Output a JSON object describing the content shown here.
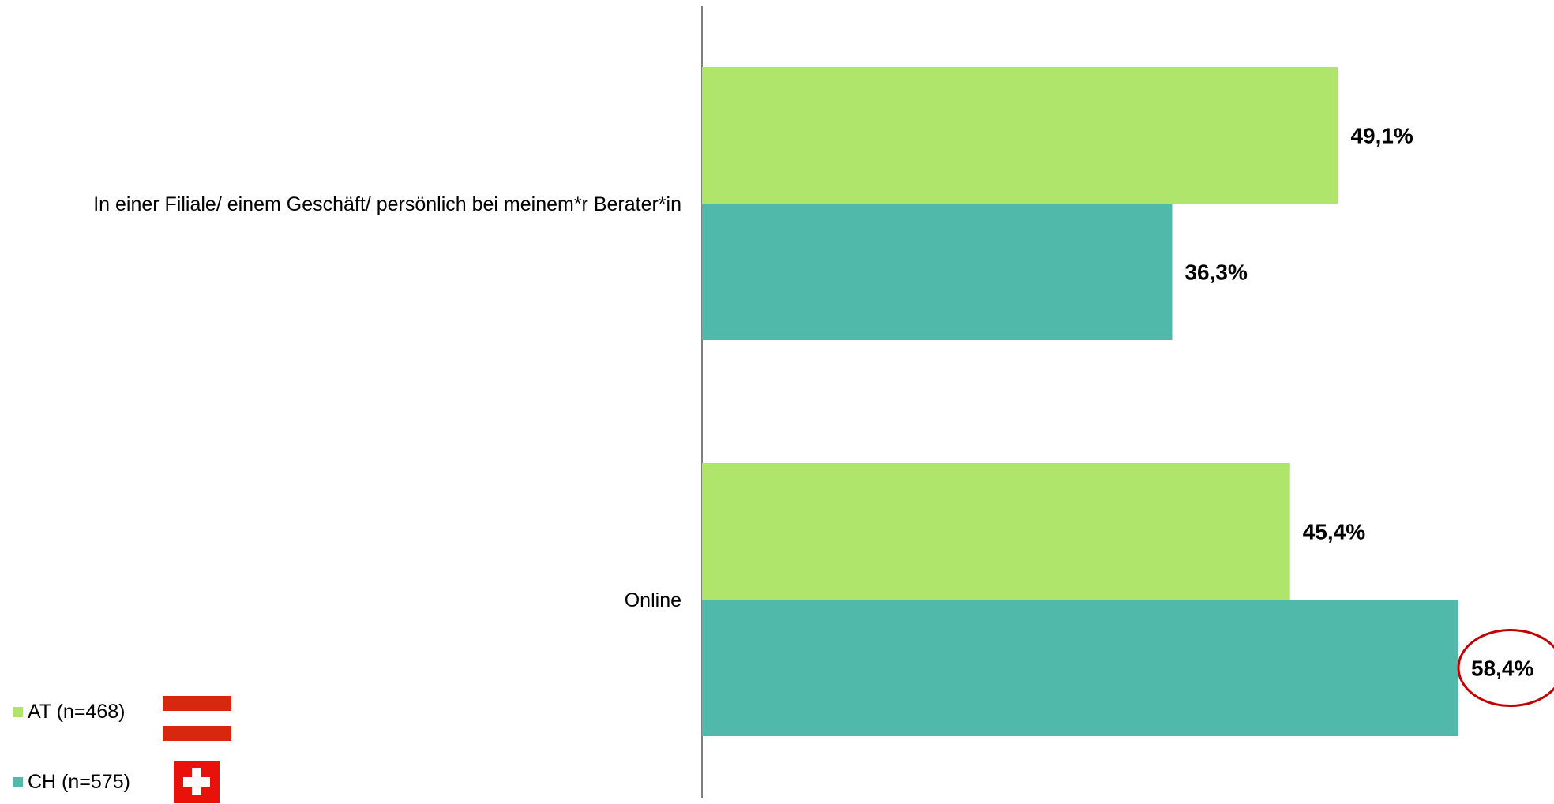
{
  "chart_data": {
    "type": "bar",
    "orientation": "horizontal",
    "categories": [
      "In einer Filiale/ einem Geschäft/ persönlich bei meinem*r Berater*in",
      "Online"
    ],
    "series": [
      {
        "name": "AT (n=468)",
        "values": [
          49.1,
          45.4
        ],
        "labels": [
          "49,1%",
          "45,4%"
        ],
        "color": "#b0e56b"
      },
      {
        "name": "CH (n=575)",
        "values": [
          36.3,
          58.4
        ],
        "labels": [
          "36,3%",
          "58,4%"
        ],
        "color": "#50b9aa"
      }
    ],
    "xlim": [
      0,
      58.4
    ],
    "grid": false,
    "legend_position": "bottom-left",
    "highlight": {
      "series": 1,
      "category": 1,
      "style": "circle",
      "color": "#c00000"
    }
  },
  "legend": {
    "items": [
      {
        "label": "AT (n=468)",
        "color": "#b0e56b",
        "flag": "austria-flag"
      },
      {
        "label": "CH (n=575)",
        "color": "#50b9aa",
        "flag": "switzerland-flag"
      }
    ]
  }
}
